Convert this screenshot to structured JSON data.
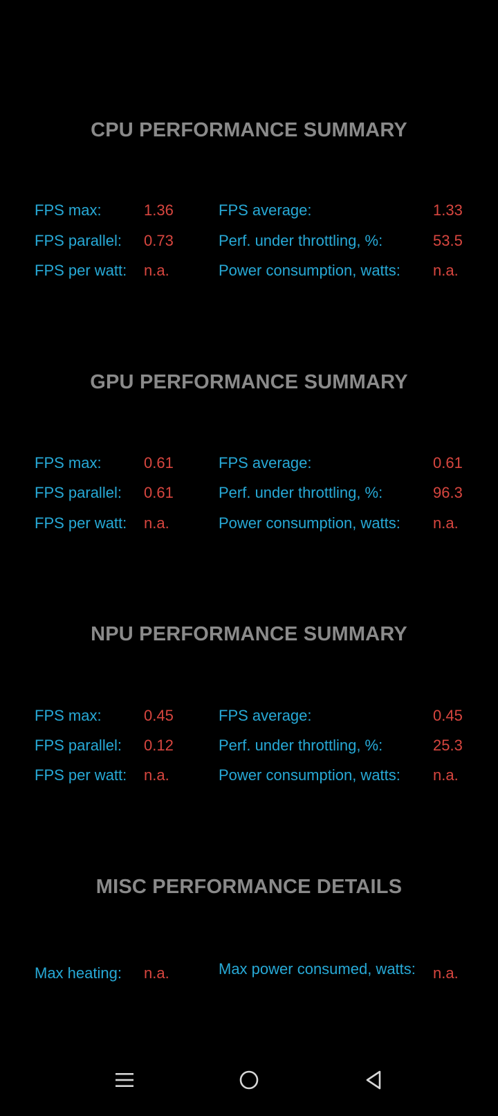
{
  "cpu": {
    "title": "CPU PERFORMANCE SUMMARY",
    "fps_max_label": "FPS max:",
    "fps_max": "1.36",
    "fps_avg_label": "FPS average:",
    "fps_avg": "1.33",
    "fps_parallel_label": "FPS parallel:",
    "fps_parallel": "0.73",
    "throttling_label": "Perf. under throttling, %:",
    "throttling": "53.5",
    "fps_per_watt_label": "FPS per watt:",
    "fps_per_watt": "n.a.",
    "power_label": "Power consumption, watts:",
    "power": "n.a."
  },
  "gpu": {
    "title": "GPU PERFORMANCE SUMMARY",
    "fps_max_label": "FPS max:",
    "fps_max": "0.61",
    "fps_avg_label": "FPS average:",
    "fps_avg": "0.61",
    "fps_parallel_label": "FPS parallel:",
    "fps_parallel": "0.61",
    "throttling_label": "Perf. under throttling, %:",
    "throttling": "96.3",
    "fps_per_watt_label": "FPS per watt:",
    "fps_per_watt": "n.a.",
    "power_label": "Power consumption, watts:",
    "power": "n.a."
  },
  "npu": {
    "title": "NPU PERFORMANCE SUMMARY",
    "fps_max_label": "FPS max:",
    "fps_max": "0.45",
    "fps_avg_label": "FPS average:",
    "fps_avg": "0.45",
    "fps_parallel_label": "FPS parallel:",
    "fps_parallel": "0.12",
    "throttling_label": "Perf. under throttling, %:",
    "throttling": "25.3",
    "fps_per_watt_label": "FPS per watt:",
    "fps_per_watt": "n.a.",
    "power_label": "Power consumption, watts:",
    "power": "n.a."
  },
  "misc": {
    "title": "MISC PERFORMANCE DETAILS",
    "max_heating_label": "Max heating:",
    "max_heating": "n.a.",
    "max_power_label": "Max power consumed, watts:",
    "max_power": "n.a."
  },
  "navbar": {
    "menu_icon": "menu-icon",
    "home_icon": "home-circle-icon",
    "back_icon": "back-triangle-icon"
  },
  "colors": {
    "background": "#000000",
    "title": "#8a8a8a",
    "label": "#27a9d6",
    "value": "#d8463f"
  }
}
